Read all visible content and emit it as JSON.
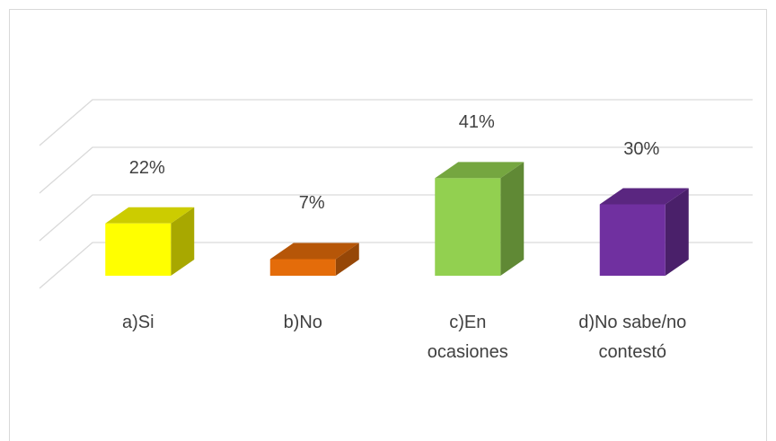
{
  "chart_data": {
    "type": "bar3d",
    "categories": [
      "a)Si",
      "b)No",
      "c)En ocasiones",
      "d)No sabe/no contestó"
    ],
    "values": [
      22,
      7,
      41,
      30
    ],
    "value_labels": [
      "22%",
      "7%",
      "41%",
      "30%"
    ],
    "colors": [
      "#ffff00",
      "#e46c0a",
      "#92d050",
      "#7030a0"
    ],
    "ylim": [
      0,
      60
    ],
    "yticks": [
      0,
      20,
      40,
      60
    ],
    "grid": true
  }
}
